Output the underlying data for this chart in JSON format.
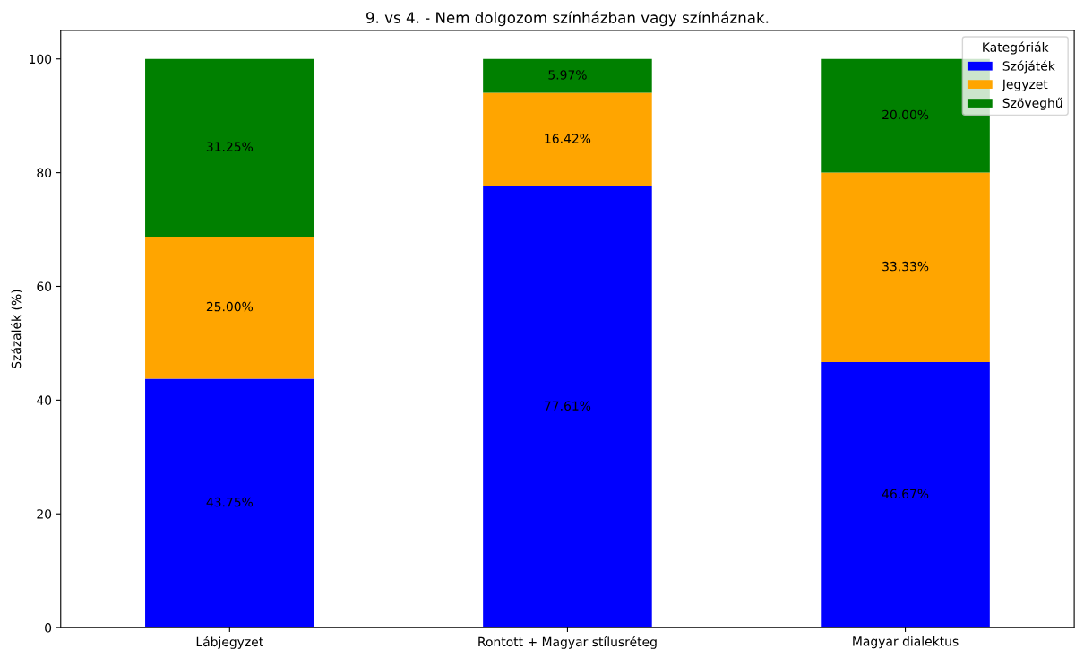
{
  "chart_data": {
    "type": "bar",
    "title": "9. vs 4. - Nem dolgozom színházban vagy színháznak.",
    "ylabel": "Százalék (%)",
    "categories": [
      "Lábjegyzet",
      "Rontott + Magyar stílusréteg",
      "Magyar dialektus"
    ],
    "stacked": true,
    "ylim": [
      0,
      105
    ],
    "yticks": [
      0,
      20,
      40,
      60,
      80,
      100
    ],
    "legend": "top right",
    "legend_title": "Kategóriák",
    "grid": false,
    "series": [
      {
        "name": "Szójáték",
        "color": "#0000ff",
        "values": [
          43.75,
          77.61,
          46.67
        ],
        "value_labels": [
          "43.75%",
          "77.61%",
          "46.67%"
        ]
      },
      {
        "name": "Jegyzet",
        "color": "#ffa500",
        "values": [
          25.0,
          16.42,
          33.33
        ],
        "value_labels": [
          "25.00%",
          "16.42%",
          "33.33%"
        ]
      },
      {
        "name": "Szöveghű",
        "color": "#008000",
        "values": [
          31.25,
          5.97,
          20.0
        ],
        "value_labels": [
          "31.25%",
          "5.97%",
          "20.00%"
        ]
      }
    ]
  }
}
